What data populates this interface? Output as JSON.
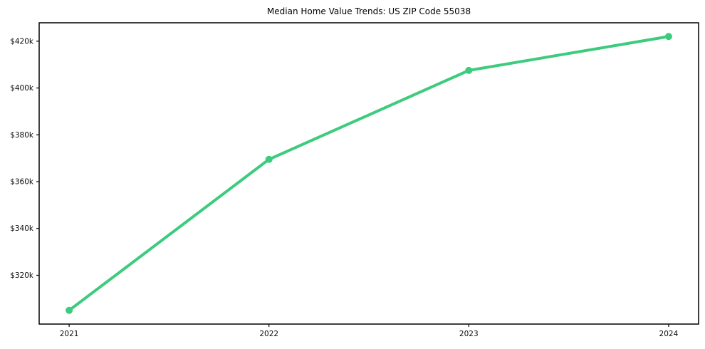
{
  "figure": {
    "title": "Median Home Value Trends: US ZIP Code 55038"
  },
  "chart_data": {
    "type": "line",
    "title": "Median Home Value Trends: US ZIP Code 55038",
    "xlabel": "",
    "ylabel": "",
    "categories": [
      "2021",
      "2022",
      "2023",
      "2024"
    ],
    "x": [
      2021,
      2022,
      2023,
      2024
    ],
    "series": [
      {
        "name": "Median Home Value",
        "values": [
          305000,
          369500,
          407500,
          422000
        ],
        "color": "#3dcb7d",
        "marker": "circle",
        "line_width": 4,
        "marker_radius": 5
      }
    ],
    "ytick_values": [
      320000,
      340000,
      360000,
      380000,
      400000,
      420000
    ],
    "ytick_labels": [
      "$320k",
      "$340k",
      "$360k",
      "$380k",
      "$400k",
      "$420k"
    ],
    "xlim": [
      2020.85,
      2024.15
    ],
    "ylim": [
      299150,
      427850
    ],
    "grid": false,
    "legend": "none",
    "axes_color": "#000000",
    "tick_label_color": "#0a0a0a",
    "background": "#ffffff"
  }
}
